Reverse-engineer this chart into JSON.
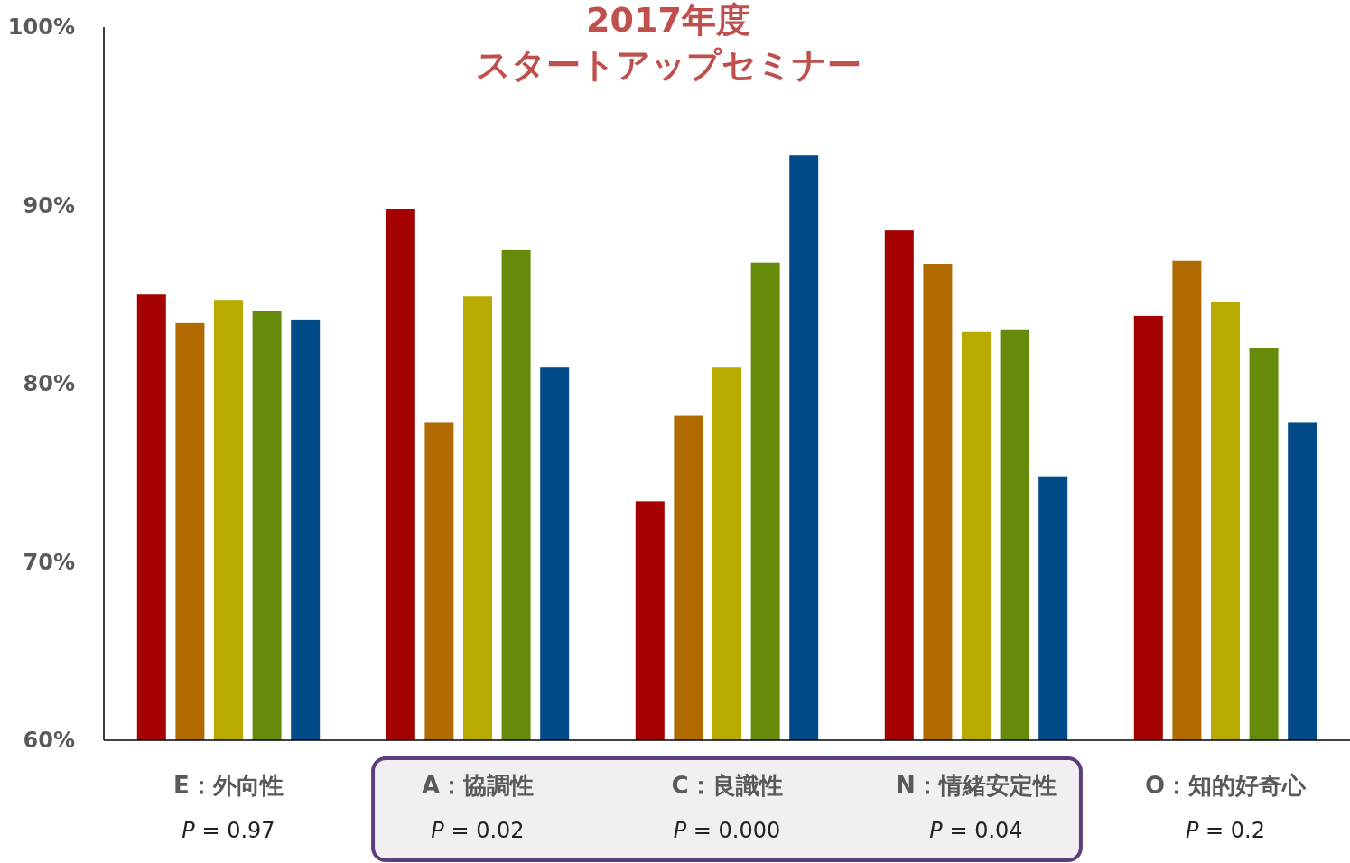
{
  "chart_data": {
    "type": "bar",
    "title": "2017年度",
    "subtitle": "スタートアップセミナー",
    "categories": [
      "E：外向性",
      "A：協調性",
      "C：良識性",
      "N：情緒安定性",
      "O：知的好奇心"
    ],
    "series": [
      {
        "color": "#a50000",
        "values": [
          85.0,
          89.8,
          73.4,
          88.6,
          83.8
        ]
      },
      {
        "color": "#b06a00",
        "values": [
          83.4,
          77.8,
          78.2,
          86.7,
          86.9
        ]
      },
      {
        "color": "#b8aa00",
        "values": [
          84.7,
          84.9,
          80.9,
          82.9,
          84.6
        ]
      },
      {
        "color": "#668a0a",
        "values": [
          84.1,
          87.5,
          86.8,
          83.0,
          82.0
        ]
      },
      {
        "color": "#004a87",
        "values": [
          83.6,
          80.9,
          92.8,
          74.8,
          77.8
        ]
      }
    ],
    "ylim": [
      60,
      100
    ],
    "yticks": [
      {
        "value": 60,
        "label": "60%"
      },
      {
        "value": 70,
        "label": "70%"
      },
      {
        "value": 80,
        "label": "80%"
      },
      {
        "value": 90,
        "label": "90%"
      },
      {
        "value": 100,
        "label": "100%"
      }
    ],
    "grid": false,
    "annotations": [
      "P = 0.97",
      "P = 0.02",
      "P = 0.000",
      "P = 0.04",
      "P = 0.2"
    ]
  }
}
